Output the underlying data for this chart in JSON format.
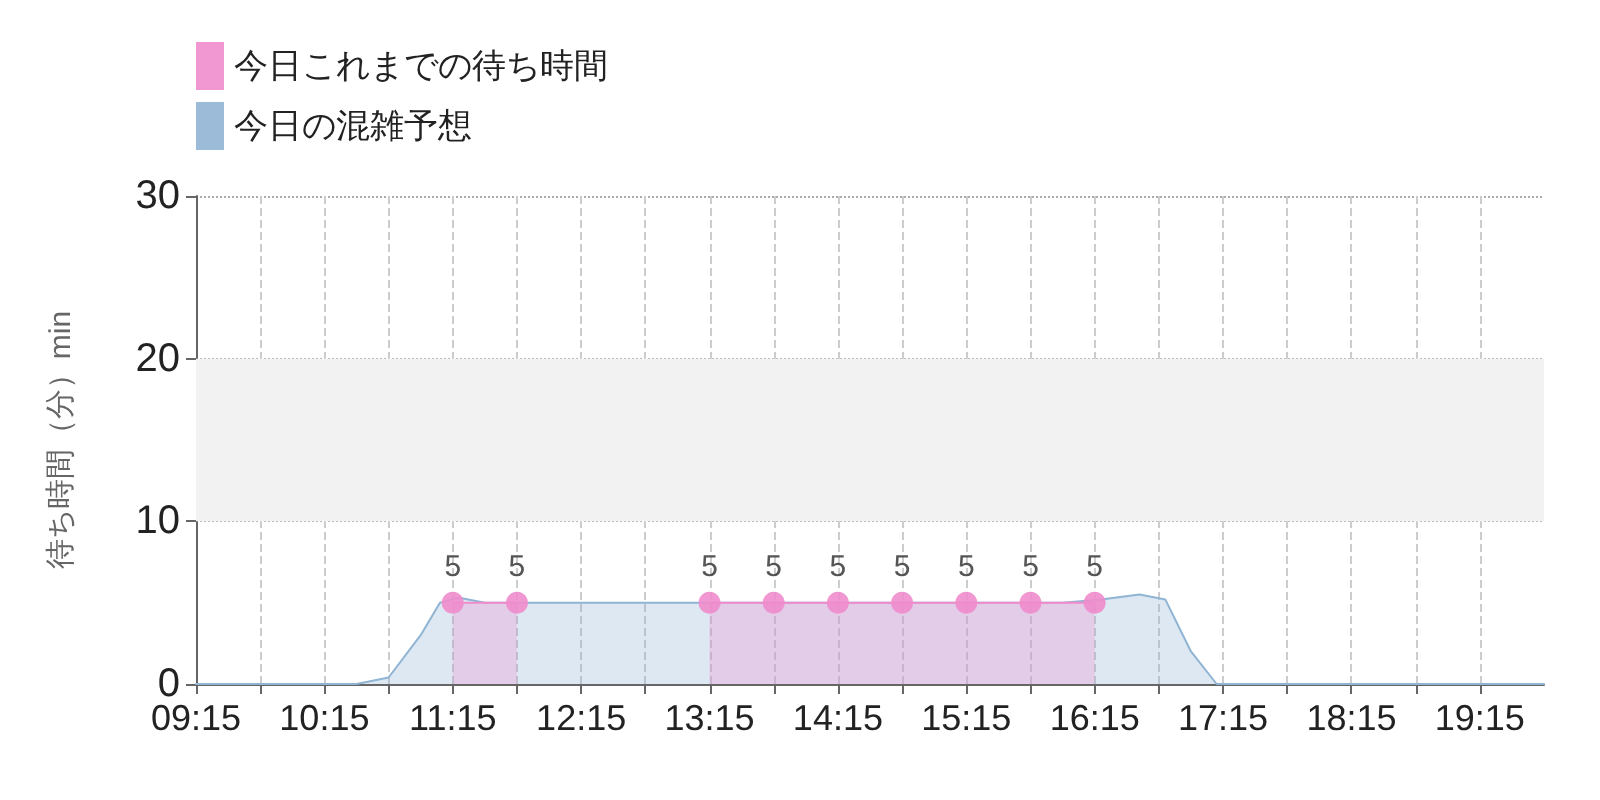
{
  "chart_data": {
    "type": "area",
    "ylabel": "待ち時間（分）min",
    "legend": "top left",
    "grid": true,
    "line_style": "solid",
    "xlim": [
      9.25,
      19.75
    ],
    "xticks": [
      {
        "value": 9.25,
        "label": "09:15"
      },
      {
        "value": 9.75,
        "label": null
      },
      {
        "value": 10.25,
        "label": "10:15"
      },
      {
        "value": 10.75,
        "label": null
      },
      {
        "value": 11.25,
        "label": "11:15"
      },
      {
        "value": 11.75,
        "label": null
      },
      {
        "value": 12.25,
        "label": "12:15"
      },
      {
        "value": 12.75,
        "label": null
      },
      {
        "value": 13.25,
        "label": "13:15"
      },
      {
        "value": 13.75,
        "label": null
      },
      {
        "value": 14.25,
        "label": "14:15"
      },
      {
        "value": 14.75,
        "label": null
      },
      {
        "value": 15.25,
        "label": "15:15"
      },
      {
        "value": 15.75,
        "label": null
      },
      {
        "value": 16.25,
        "label": "16:15"
      },
      {
        "value": 16.75,
        "label": null
      },
      {
        "value": 17.25,
        "label": "17:15"
      },
      {
        "value": 17.75,
        "label": null
      },
      {
        "value": 18.25,
        "label": "18:15"
      },
      {
        "value": 18.75,
        "label": null
      },
      {
        "value": 19.25,
        "label": "19:15"
      }
    ],
    "ylim": [
      0,
      30
    ],
    "yticks": [
      0,
      10,
      20,
      30
    ],
    "bands": [
      {
        "axis": "y",
        "from": 10,
        "to": 20,
        "color": "#f2f2f2"
      }
    ],
    "series": [
      {
        "name": "今日これまでの待ち時間",
        "color": "#f08ccc",
        "marker": "circle",
        "x": [
          11.25,
          11.75,
          12.5,
          13.25,
          13.75,
          14.25,
          14.75,
          15.25,
          15.75,
          16.25
        ],
        "values": [
          5,
          5,
          null,
          5,
          5,
          5,
          5,
          5,
          5,
          5
        ],
        "value_labels": [
          "5",
          "5",
          null,
          "5",
          "5",
          "5",
          "5",
          "5",
          "5",
          "5"
        ]
      },
      {
        "name": "今日の混雑予想",
        "color": "#90b4d4",
        "marker": "none",
        "x": [
          9.25,
          10.0,
          10.5,
          10.75,
          11.0,
          11.15,
          11.3,
          11.5,
          12.0,
          13.0,
          14.0,
          15.0,
          16.0,
          16.3,
          16.6,
          16.8,
          17.0,
          17.2,
          17.5,
          18.5,
          19.75
        ],
        "values": [
          0,
          0,
          0,
          0.4,
          3,
          5,
          5.3,
          5,
          5,
          5,
          5,
          5,
          5,
          5.2,
          5.5,
          5.2,
          2,
          0,
          0,
          0,
          0
        ]
      }
    ]
  }
}
